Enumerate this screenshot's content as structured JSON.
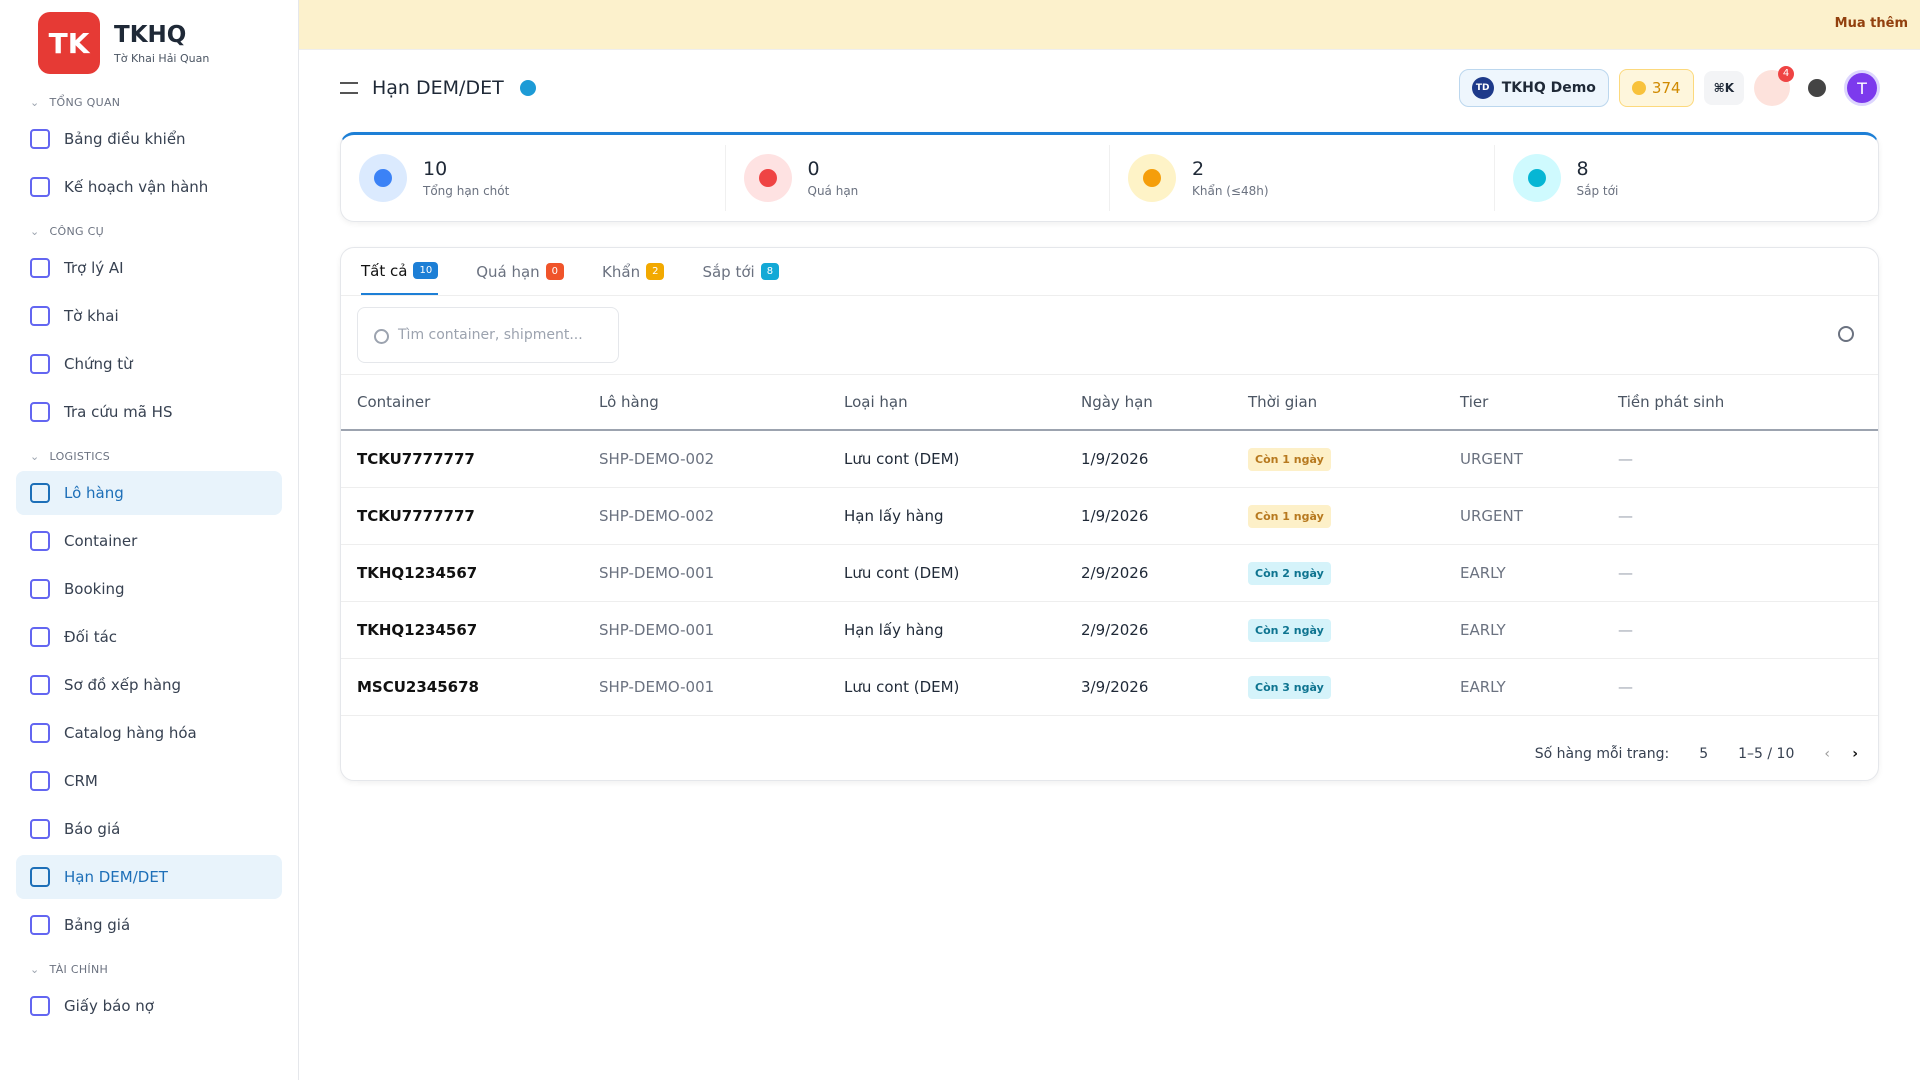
{
  "sidebar": {
    "brand": {
      "logo": "TK",
      "name": "TKHQ",
      "subtitle": "Tờ Khai Hải Quan"
    },
    "sections": [
      {
        "title": "TỔNG QUAN",
        "items": [
          "Bảng điều khiển",
          "Kế hoạch vận hành"
        ]
      },
      {
        "title": "CÔNG CỤ",
        "items": [
          "Trợ lý AI",
          "Tờ khai",
          "Chứng từ",
          "Tra cứu mã HS"
        ]
      },
      {
        "title": "LOGISTICS",
        "items": [
          "Lô hàng",
          "Container",
          "Booking",
          "Đối tác",
          "Sơ đồ xếp hàng",
          "Catalog hàng hóa",
          "CRM",
          "Báo giá",
          "Hạn DEM/DET",
          "Bảng giá"
        ]
      },
      {
        "title": "TÀI CHÍNH",
        "items": [
          "Giấy báo nợ"
        ]
      }
    ],
    "active": [
      "Lô hàng",
      "Hạn DEM/DET"
    ]
  },
  "banner": {
    "link": "Mua thêm"
  },
  "header": {
    "title": "Hạn DEM/DET",
    "workspace_badge": "TD",
    "workspace": "TKHQ Demo",
    "credits": 374,
    "shortcut": "⌘K",
    "notifications": 4,
    "avatar": "T"
  },
  "stats": [
    {
      "value": 10,
      "label": "Tổng hạn chót",
      "color": "#3b82f6",
      "bg": "#dbeafe"
    },
    {
      "value": 0,
      "label": "Quá hạn",
      "color": "#ef4444",
      "bg": "#fee2e2"
    },
    {
      "value": 2,
      "label": "Khẩn (≤48h)",
      "color": "#f59e0b",
      "bg": "#fef3c7"
    },
    {
      "value": 8,
      "label": "Sắp tới",
      "color": "#06b6d4",
      "bg": "#cffafe"
    }
  ],
  "tabs": [
    {
      "label": "Tất cả",
      "count": 10,
      "color": "#1d7fd6"
    },
    {
      "label": "Quá hạn",
      "count": 0,
      "color": "#f0542a"
    },
    {
      "label": "Khẩn",
      "count": 2,
      "color": "#f2a900"
    },
    {
      "label": "Sắp tới",
      "count": 8,
      "color": "#13a9d6"
    }
  ],
  "search": {
    "placeholder": "Tìm container, shipment..."
  },
  "table": {
    "columns": [
      "Container",
      "Lô hàng",
      "Loại hạn",
      "Ngày hạn",
      "Thời gian",
      "Tier",
      "Tiền phát sinh"
    ],
    "rows": [
      {
        "cells": [
          "TCKU7777777",
          "SHP-DEMO-002",
          "Lưu cont (DEM)",
          "1/9/2026",
          "Còn 1 ngày",
          "URGENT",
          "—"
        ],
        "badge_color": "#b7791f",
        "badge_bg": "#fdf0c8"
      },
      {
        "cells": [
          "TCKU7777777",
          "SHP-DEMO-002",
          "Hạn lấy hàng",
          "1/9/2026",
          "Còn 1 ngày",
          "URGENT",
          "—"
        ],
        "badge_color": "#b7791f",
        "badge_bg": "#fdf0c8"
      },
      {
        "cells": [
          "TKHQ1234567",
          "SHP-DEMO-001",
          "Lưu cont (DEM)",
          "2/9/2026",
          "Còn 2 ngày",
          "EARLY",
          "—"
        ],
        "badge_color": "#0e7490",
        "badge_bg": "#d5f3fa"
      },
      {
        "cells": [
          "TKHQ1234567",
          "SHP-DEMO-001",
          "Hạn lấy hàng",
          "2/9/2026",
          "Còn 2 ngày",
          "EARLY",
          "—"
        ],
        "badge_color": "#0e7490",
        "badge_bg": "#d5f3fa"
      },
      {
        "cells": [
          "MSCU2345678",
          "SHP-DEMO-001",
          "Lưu cont (DEM)",
          "3/9/2026",
          "Còn 3 ngày",
          "EARLY",
          "—"
        ],
        "badge_color": "#0e7490",
        "badge_bg": "#d5f3fa"
      }
    ]
  },
  "pagination": {
    "label": "Số hàng mỗi trang:",
    "page_size": 5,
    "range": "1–5 / 10"
  }
}
